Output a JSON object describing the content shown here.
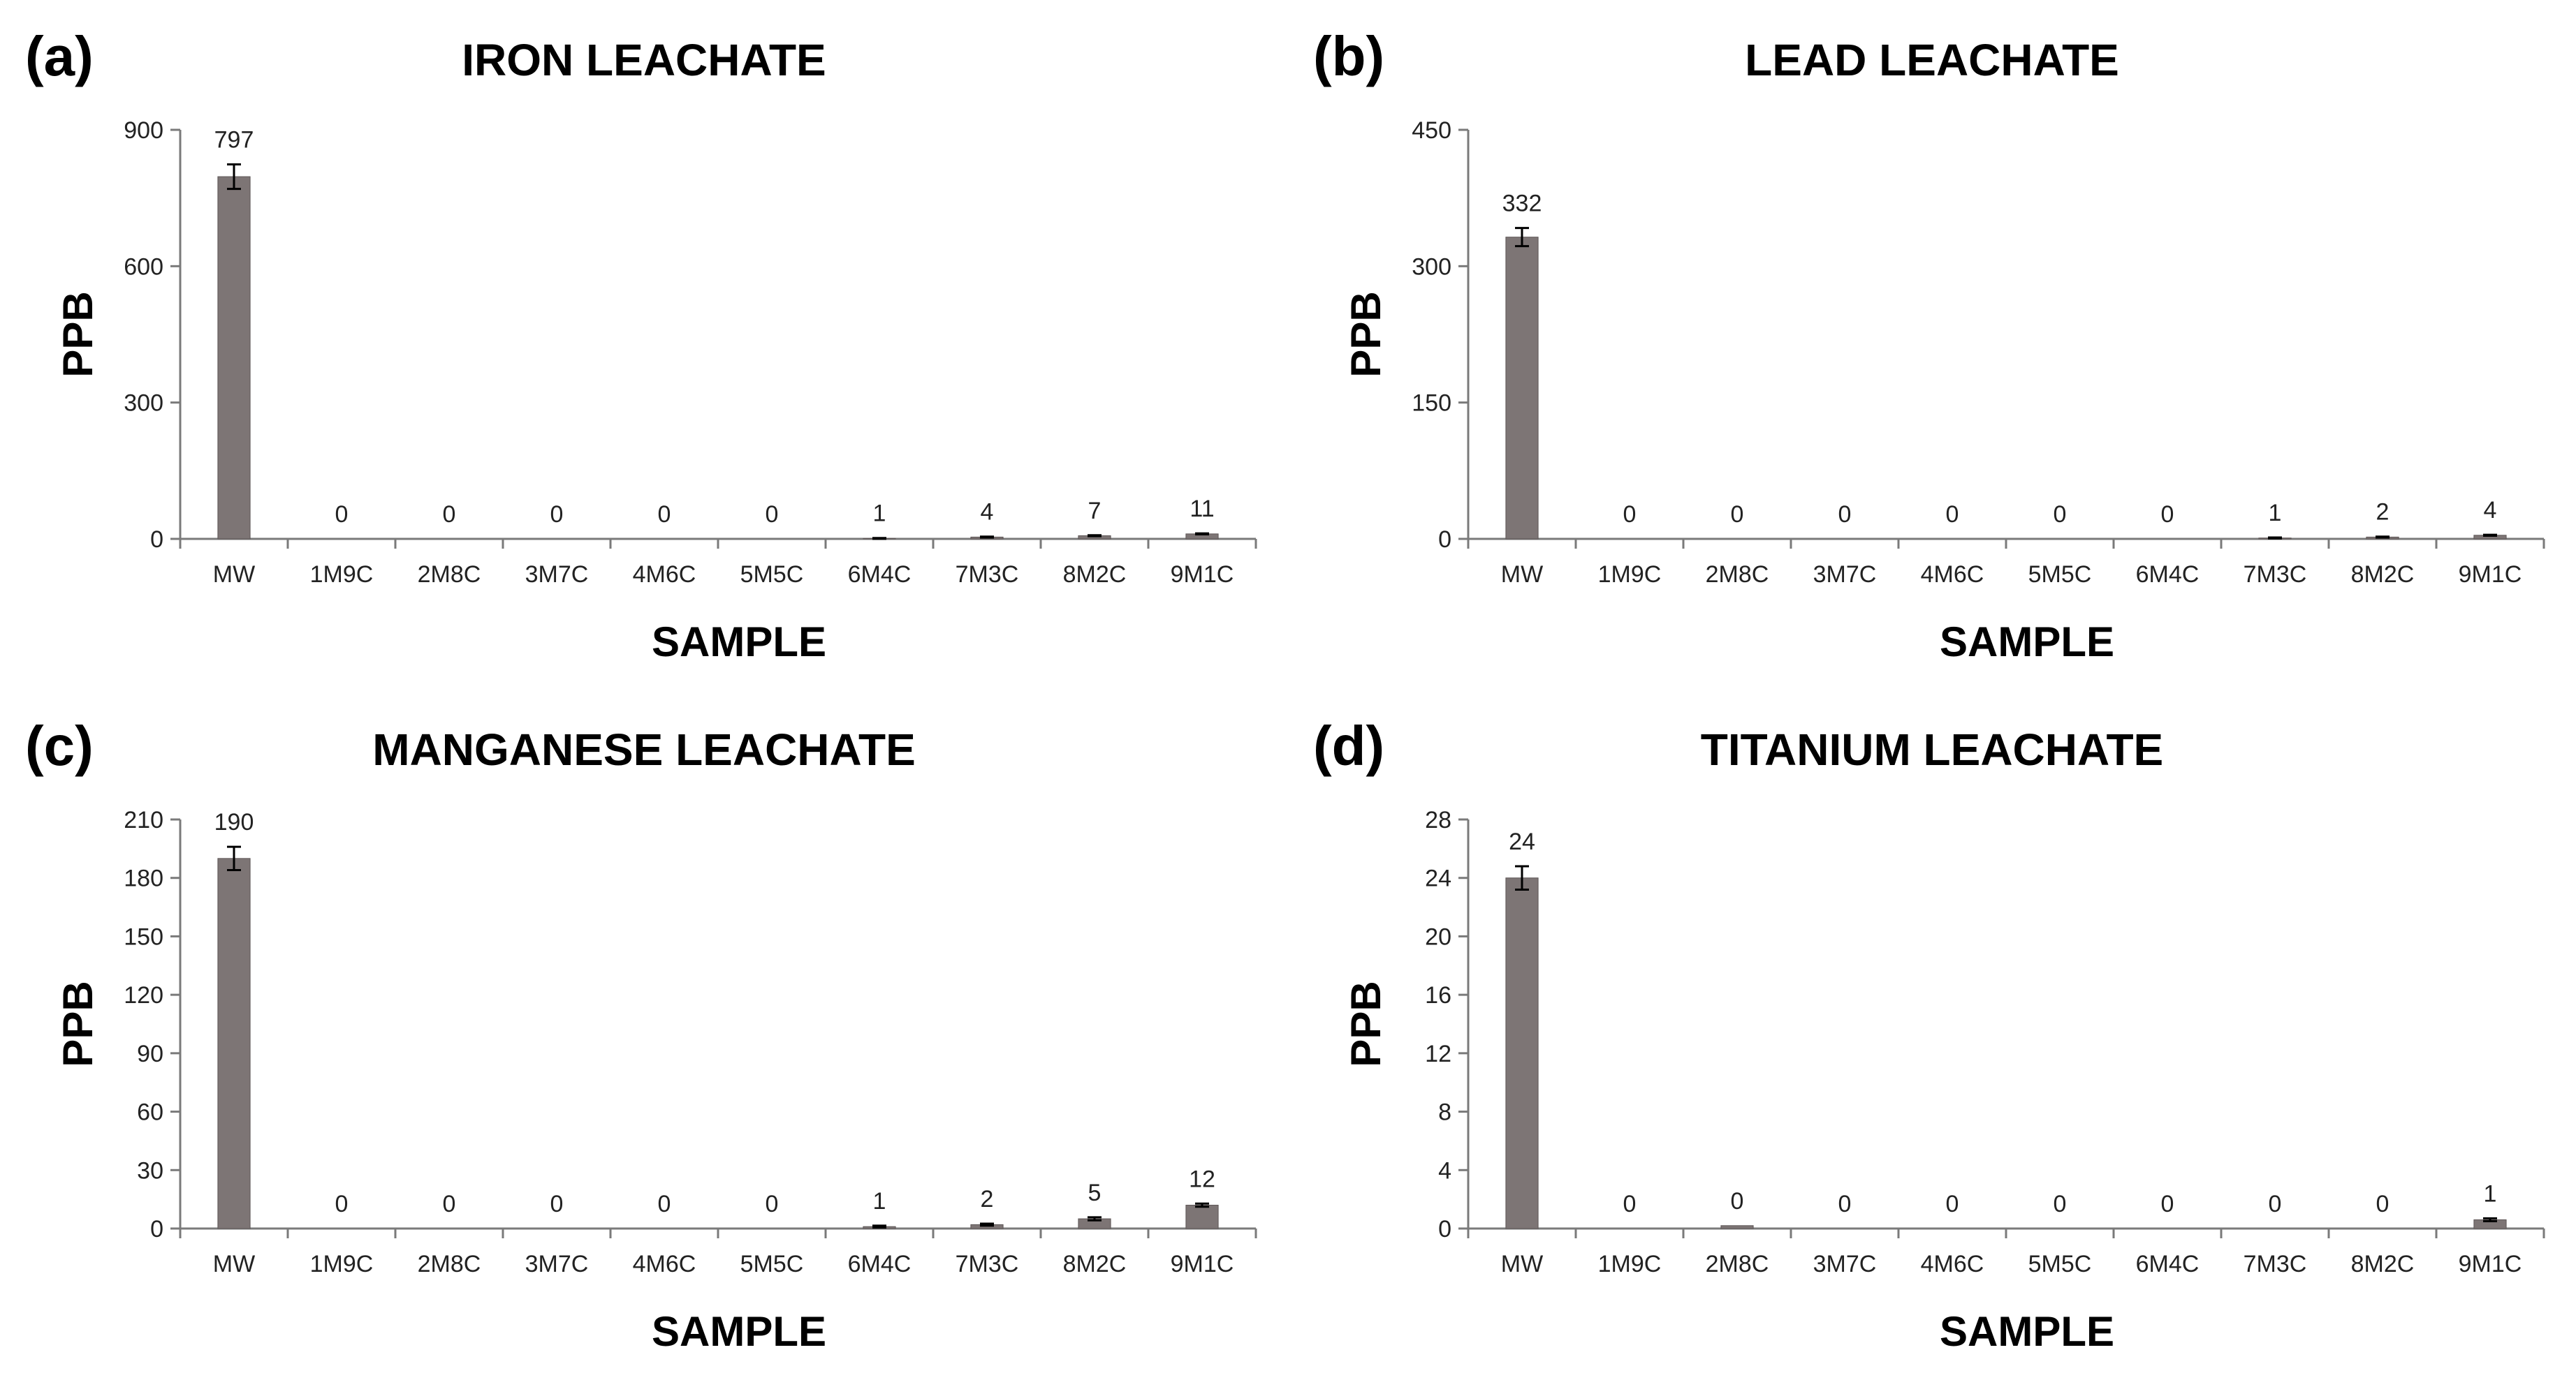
{
  "chart_data": [
    {
      "type": "bar",
      "panel_label": "(a)",
      "title": "IRON LEACHATE",
      "xlabel": "SAMPLE",
      "ylabel": "PPB",
      "ylim": [
        0,
        900
      ],
      "yticks": [
        0,
        300,
        600,
        900
      ],
      "categories": [
        "MW",
        "1M9C",
        "2M8C",
        "3M7C",
        "4M6C",
        "5M5C",
        "6M4C",
        "7M3C",
        "8M2C",
        "9M1C"
      ],
      "values": [
        797,
        0,
        0,
        0,
        0,
        0,
        1,
        4,
        7,
        11
      ],
      "data_labels": [
        "797",
        "0",
        "0",
        "0",
        "0",
        "0",
        "1",
        "4",
        "7",
        "11"
      ],
      "errors": [
        27,
        0,
        0,
        0,
        0,
        0,
        1,
        1,
        1,
        1
      ]
    },
    {
      "type": "bar",
      "panel_label": "(b)",
      "title": "LEAD LEACHATE",
      "xlabel": "SAMPLE",
      "ylabel": "PPB",
      "ylim": [
        0,
        450
      ],
      "yticks": [
        0,
        150,
        300,
        450
      ],
      "categories": [
        "MW",
        "1M9C",
        "2M8C",
        "3M7C",
        "4M6C",
        "5M5C",
        "6M4C",
        "7M3C",
        "8M2C",
        "9M1C"
      ],
      "values": [
        332,
        0,
        0,
        0,
        0,
        0,
        0,
        1,
        2,
        4
      ],
      "data_labels": [
        "332",
        "0",
        "0",
        "0",
        "0",
        "0",
        "0",
        "1",
        "2",
        "4"
      ],
      "errors": [
        10,
        0,
        0,
        0,
        0,
        0,
        0,
        0.5,
        0.5,
        0.5
      ]
    },
    {
      "type": "bar",
      "panel_label": "(c)",
      "title": "MANGANESE LEACHATE",
      "xlabel": "SAMPLE",
      "ylabel": "PPB",
      "ylim": [
        0,
        210
      ],
      "yticks": [
        0,
        30,
        60,
        90,
        120,
        150,
        180,
        210
      ],
      "categories": [
        "MW",
        "1M9C",
        "2M8C",
        "3M7C",
        "4M6C",
        "5M5C",
        "6M4C",
        "7M3C",
        "8M2C",
        "9M1C"
      ],
      "values": [
        190,
        0,
        0,
        0,
        0,
        0,
        1,
        2,
        5,
        12
      ],
      "data_labels": [
        "190",
        "0",
        "0",
        "0",
        "0",
        "0",
        "1",
        "2",
        "5",
        "12"
      ],
      "errors": [
        6,
        0,
        0,
        0,
        0,
        0,
        0.5,
        0.5,
        0.8,
        0.8
      ]
    },
    {
      "type": "bar",
      "panel_label": "(d)",
      "title": "TITANIUM LEACHATE",
      "xlabel": "SAMPLE",
      "ylabel": "PPB",
      "ylim": [
        0,
        28
      ],
      "yticks": [
        0,
        4,
        8,
        12,
        16,
        20,
        24,
        28
      ],
      "categories": [
        "MW",
        "1M9C",
        "2M8C",
        "3M7C",
        "4M6C",
        "5M5C",
        "6M4C",
        "7M3C",
        "8M2C",
        "9M1C"
      ],
      "values": [
        24,
        0,
        0.2,
        0,
        0,
        0,
        0,
        0,
        0,
        0.6
      ],
      "data_labels": [
        "24",
        "0",
        "0",
        "0",
        "0",
        "0",
        "0",
        "0",
        "0",
        "1"
      ],
      "errors": [
        0.8,
        0,
        0,
        0,
        0,
        0,
        0,
        0,
        0,
        0.1
      ]
    }
  ]
}
